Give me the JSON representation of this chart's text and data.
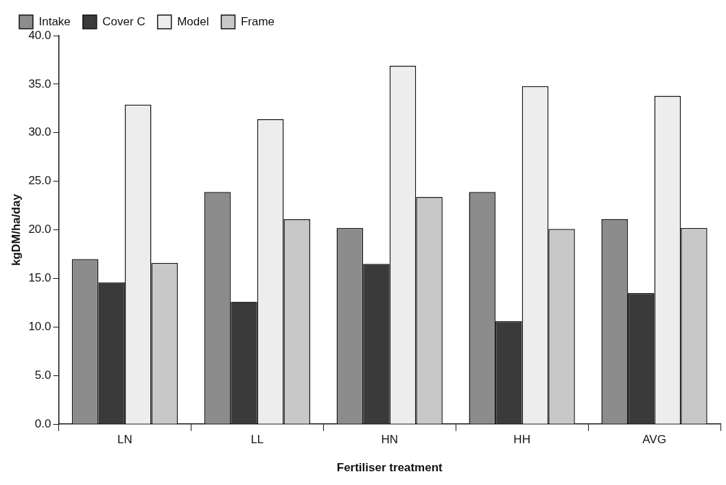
{
  "chart_data": {
    "type": "bar",
    "xlabel": "Fertiliser treatment",
    "ylabel": "kgDM/ha/day",
    "categories": [
      "LN",
      "LL",
      "HN",
      "HH",
      "AVG"
    ],
    "series": [
      {
        "name": "Intake",
        "color": "#8c8c8c",
        "values": [
          17.0,
          23.9,
          20.2,
          23.9,
          21.1
        ]
      },
      {
        "name": "Cover C",
        "color": "#3a3a3a",
        "values": [
          14.6,
          12.6,
          16.5,
          10.6,
          13.5
        ]
      },
      {
        "name": "Model",
        "color": "#ededed",
        "values": [
          32.9,
          31.4,
          36.9,
          34.8,
          33.8
        ]
      },
      {
        "name": "Frame",
        "color": "#c8c8c8",
        "values": [
          16.6,
          21.1,
          23.4,
          20.1,
          20.2
        ]
      }
    ],
    "ylim": [
      0,
      40
    ],
    "yticks": [
      {
        "value": 0,
        "label": "0.0"
      },
      {
        "value": 5,
        "label": "5.0"
      },
      {
        "value": 10,
        "label": "10.0"
      },
      {
        "value": 15,
        "label": "15.0"
      },
      {
        "value": 20,
        "label": "20.0"
      },
      {
        "value": 25,
        "label": "25.0"
      },
      {
        "value": 30,
        "label": "30.0"
      },
      {
        "value": 35,
        "label": "35.0"
      },
      {
        "value": 40,
        "label": "40.0"
      }
    ],
    "grid": false,
    "legend": "top left"
  }
}
